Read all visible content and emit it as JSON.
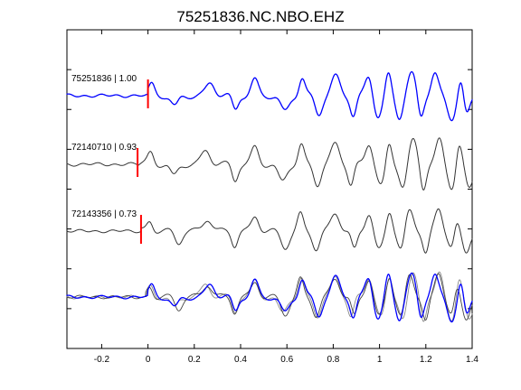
{
  "chart_data": {
    "type": "line",
    "title": "75251836.NC.NBO.EHZ",
    "xlabel": "",
    "ylabel": "",
    "xlim": [
      -0.35,
      1.4
    ],
    "x_ticks": [
      -0.2,
      0,
      0.2,
      0.4,
      0.6,
      0.8,
      1,
      1.2,
      1.4
    ],
    "x_tick_labels": [
      "-0.2",
      "0",
      "0.2",
      "0.4",
      "0.6",
      "0.8",
      "1",
      "1.2",
      "1.4"
    ],
    "y_ticks_count": 9,
    "grid": false,
    "colors": {
      "reference": "#0000ff",
      "correlated": "#333333",
      "stack_gray_1": "#888888",
      "stack_gray_2": "#444444",
      "pick": "#ff0000"
    },
    "traces": [
      {
        "label": "75251836 | 1.00",
        "event_id": "75251836",
        "correlation": 1.0,
        "pick_time": 0.0,
        "color": "reference",
        "onset": 0.0,
        "amplitude": 1.0,
        "seed": 1
      },
      {
        "label": "72140710 | 0.93",
        "event_id": "72140710",
        "correlation": 0.93,
        "pick_time": -0.045,
        "color": "correlated",
        "onset": -0.045,
        "amplitude": 1.05,
        "seed": 2
      },
      {
        "label": "72143356 | 0.73",
        "event_id": "72143356",
        "correlation": 0.73,
        "pick_time": -0.03,
        "color": "correlated",
        "onset": -0.03,
        "amplitude": 0.95,
        "seed": 3
      }
    ],
    "overlay": {
      "label": "",
      "series": [
        {
          "color": "stack_gray_1",
          "seed": 2,
          "onset": -0.01
        },
        {
          "color": "stack_gray_2",
          "seed": 3,
          "onset": -0.005
        },
        {
          "color": "reference",
          "seed": 1,
          "onset": 0.0
        }
      ]
    },
    "peak_times": [
      0.015,
      0.12,
      0.26,
      0.37,
      0.47,
      0.58,
      0.66,
      0.73,
      0.81,
      0.88,
      0.95,
      1.0,
      1.04,
      1.09,
      1.14,
      1.19,
      1.25,
      1.31,
      1.34,
      1.38
    ]
  }
}
